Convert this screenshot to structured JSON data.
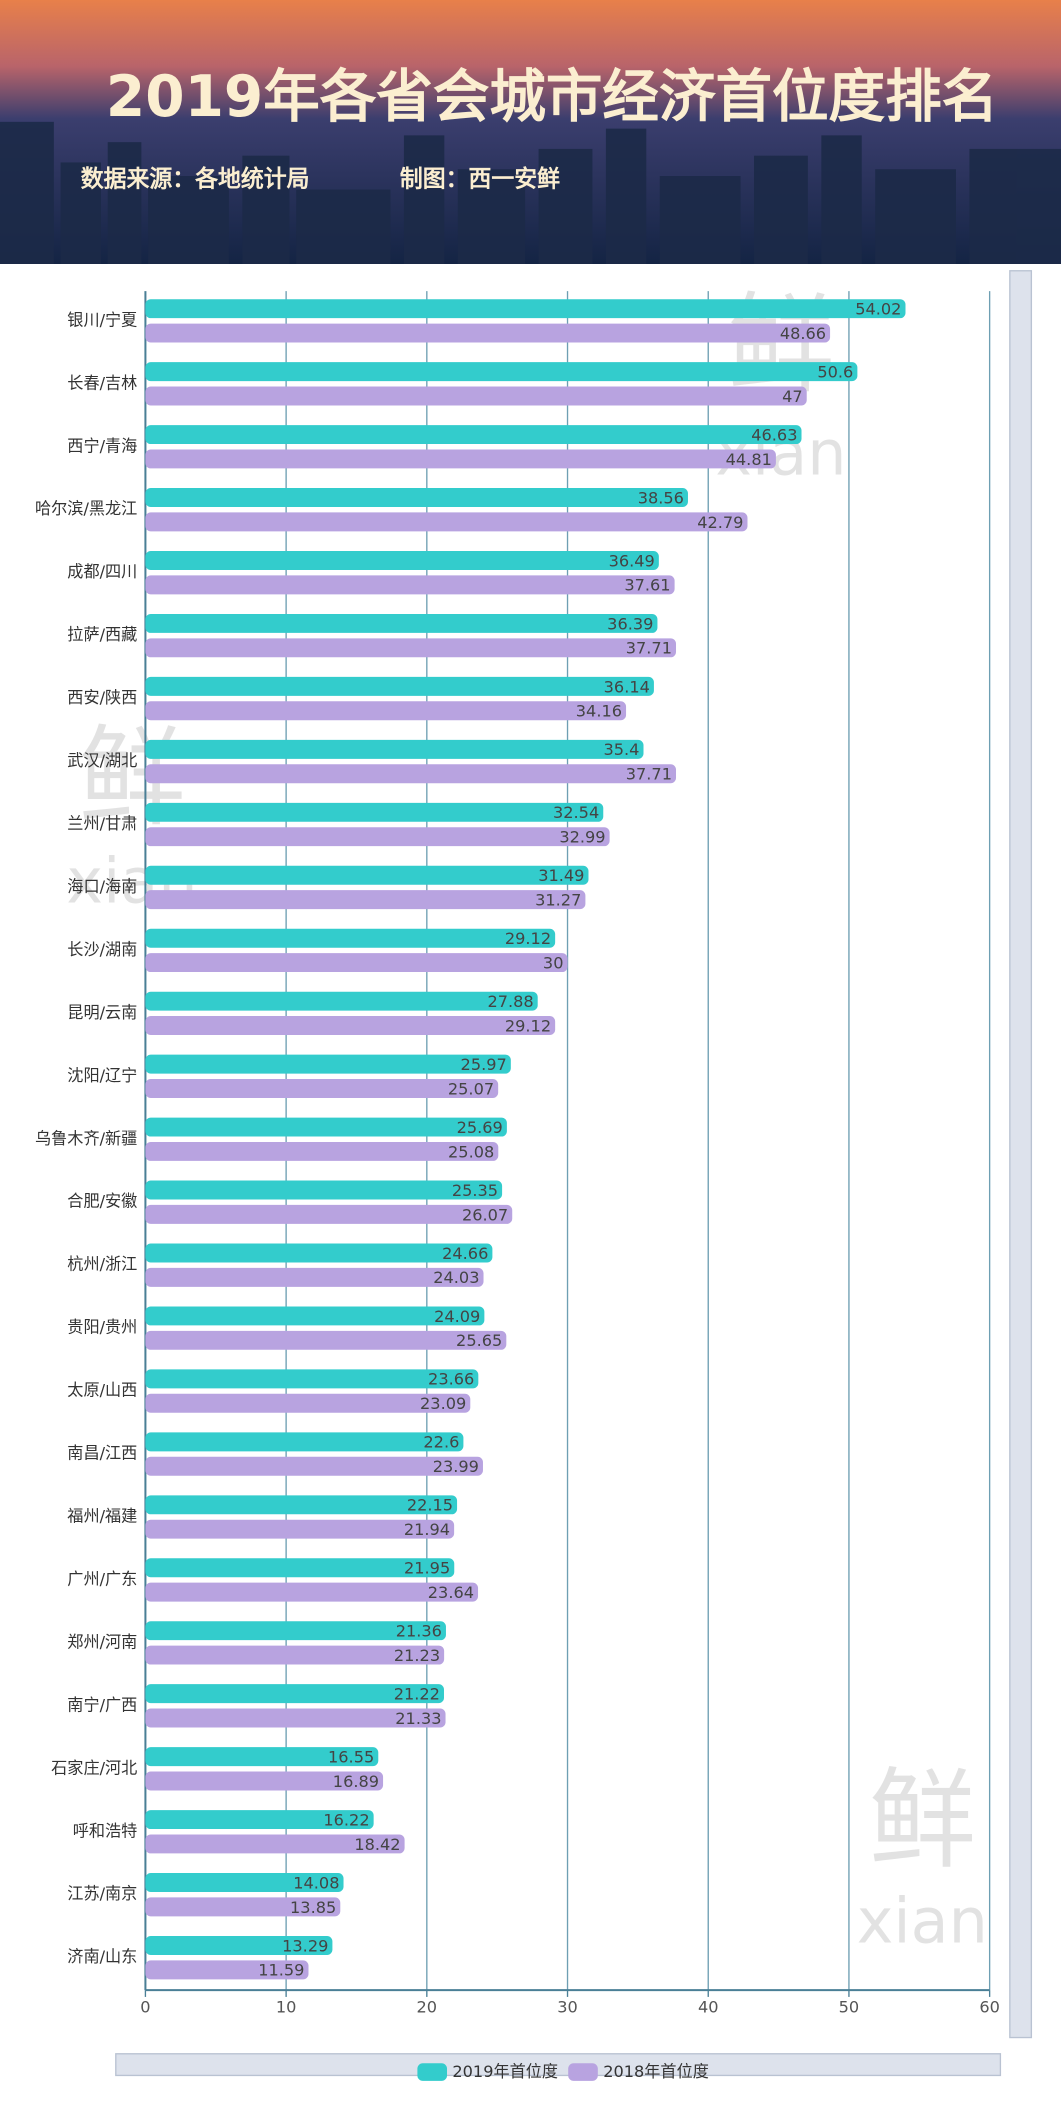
{
  "chart_data": {
    "type": "bar",
    "orientation": "horizontal",
    "title": "2019年各省会城市经济首位度排名",
    "subtitle": "数据来源：各地统计局",
    "credit": "制图：西一安鲜",
    "watermark": {
      "mark": "鲜",
      "text": "xian"
    },
    "categories": [
      "银川/宁夏",
      "长春/吉林",
      "西宁/青海",
      "哈尔滨/黑龙江",
      "成都/四川",
      "拉萨/西藏",
      "西安/陕西",
      "武汉/湖北",
      "兰州/甘肃",
      "海口/海南",
      "长沙/湖南",
      "昆明/云南",
      "沈阳/辽宁",
      "乌鲁木齐/新疆",
      "合肥/安徽",
      "杭州/浙江",
      "贵阳/贵州",
      "太原/山西",
      "南昌/江西",
      "福州/福建",
      "广州/广东",
      "郑州/河南",
      "南宁/广西",
      "石家庄/河北",
      "呼和浩特",
      "江苏/南京",
      "济南/山东"
    ],
    "series": [
      {
        "name": "2019年首位度",
        "color": "#33cccc",
        "values": [
          54.02,
          50.6,
          46.63,
          38.56,
          36.49,
          36.39,
          36.14,
          35.4,
          32.54,
          31.49,
          29.12,
          27.88,
          25.97,
          25.69,
          25.35,
          24.66,
          24.09,
          23.66,
          22.6,
          22.15,
          21.95,
          21.36,
          21.22,
          16.55,
          16.22,
          14.08,
          13.29
        ]
      },
      {
        "name": "2018年首位度",
        "color": "#b8a3e0",
        "values": [
          48.66,
          47,
          44.81,
          42.79,
          37.61,
          37.71,
          34.16,
          37.71,
          32.99,
          31.27,
          30,
          29.12,
          25.07,
          25.08,
          26.07,
          24.03,
          25.65,
          23.09,
          23.99,
          21.94,
          23.64,
          21.23,
          21.33,
          16.89,
          18.42,
          13.85,
          11.59
        ]
      }
    ],
    "xlim": [
      0,
      60
    ],
    "xticks": [
      0,
      10,
      20,
      30,
      40,
      50,
      60
    ],
    "grid": true,
    "legend": "bottom"
  }
}
